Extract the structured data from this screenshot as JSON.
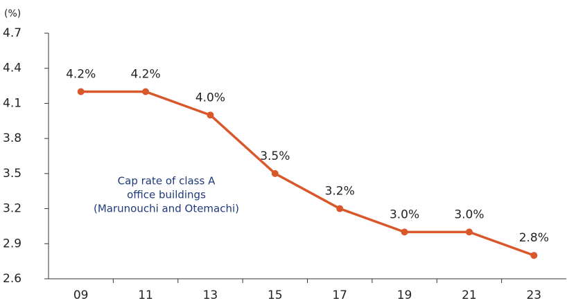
{
  "chart_data": {
    "type": "line",
    "y_unit_label": "(%)",
    "annotation": [
      "Cap rate of class A",
      "office buildings",
      "(Marunouchi and Otemachi)"
    ],
    "categories": [
      "09",
      "11",
      "13",
      "15",
      "17",
      "19",
      "21",
      "23"
    ],
    "series": [
      {
        "name": "Cap rate of class A office buildings",
        "color": "#d9582b",
        "values": [
          4.2,
          4.2,
          4.0,
          3.5,
          3.2,
          3.0,
          3.0,
          2.8
        ],
        "value_labels": [
          "4.2%",
          "4.2%",
          "4.0%",
          "3.5%",
          "3.2%",
          "3.0%",
          "3.0%",
          "2.8%"
        ]
      }
    ],
    "ylim": [
      2.6,
      4.7
    ],
    "yticks": [
      2.6,
      2.9,
      3.2,
      3.5,
      3.8,
      4.1,
      4.4,
      4.7
    ],
    "annotation_color": "#1f3a7a",
    "grid": false
  }
}
